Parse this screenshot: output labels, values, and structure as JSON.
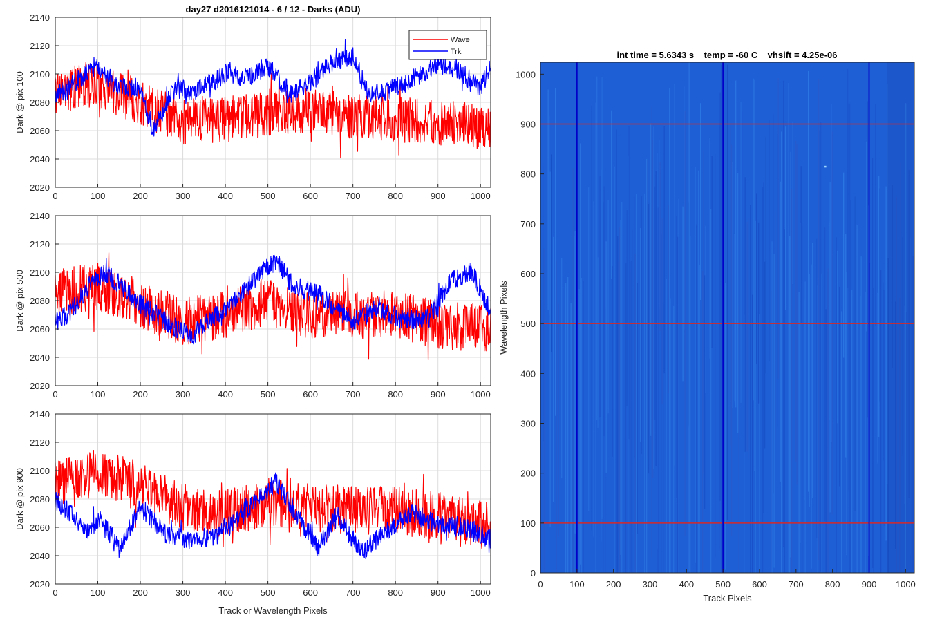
{
  "chart_data": [
    {
      "type": "line",
      "title": "day27 d2016121014 - 6 / 12 - Darks (ADU)",
      "xlabel": "",
      "ylabel": "Dark @ pix 100",
      "xlim": [
        0,
        1024
      ],
      "ylim": [
        2020,
        2140
      ],
      "xticks": [
        0,
        100,
        200,
        300,
        400,
        500,
        600,
        700,
        800,
        900,
        1000
      ],
      "yticks": [
        2020,
        2040,
        2060,
        2080,
        2100,
        2120,
        2140
      ],
      "grid": true,
      "legend": {
        "placement": "top-right",
        "entries": [
          "Wave",
          "Trk"
        ]
      },
      "series": [
        {
          "name": "Wave",
          "color": "#ff0000",
          "trend_x": [
            0,
            100,
            200,
            300,
            400,
            500,
            600,
            700,
            800,
            900,
            1024
          ],
          "trend_y": [
            2088,
            2092,
            2080,
            2066,
            2068,
            2072,
            2074,
            2070,
            2068,
            2066,
            2062
          ],
          "noise_amplitude": 16
        },
        {
          "name": "Trk",
          "color": "#0000ff",
          "trend_x": [
            0,
            50,
            100,
            150,
            200,
            230,
            280,
            330,
            400,
            450,
            500,
            560,
            600,
            650,
            700,
            740,
            800,
            850,
            900,
            950,
            1000,
            1024
          ],
          "trend_y": [
            2085,
            2095,
            2105,
            2090,
            2090,
            2060,
            2090,
            2088,
            2100,
            2098,
            2105,
            2085,
            2095,
            2108,
            2112,
            2085,
            2090,
            2098,
            2108,
            2102,
            2090,
            2105
          ],
          "noise_amplitude": 7
        }
      ]
    },
    {
      "type": "line",
      "title": "",
      "xlabel": "",
      "ylabel": "Dark @ pix 500",
      "xlim": [
        0,
        1024
      ],
      "ylim": [
        2020,
        2140
      ],
      "xticks": [
        0,
        100,
        200,
        300,
        400,
        500,
        600,
        700,
        800,
        900,
        1000
      ],
      "yticks": [
        2020,
        2040,
        2060,
        2080,
        2100,
        2120,
        2140
      ],
      "grid": true,
      "series": [
        {
          "name": "Wave",
          "color": "#ff0000",
          "trend_x": [
            0,
            100,
            200,
            300,
            400,
            500,
            600,
            700,
            800,
            900,
            1024
          ],
          "trend_y": [
            2085,
            2090,
            2078,
            2065,
            2070,
            2080,
            2068,
            2070,
            2070,
            2063,
            2060
          ],
          "noise_amplitude": 17
        },
        {
          "name": "Trk",
          "color": "#0000ff",
          "trend_x": [
            0,
            30,
            80,
            120,
            200,
            260,
            320,
            360,
            420,
            480,
            520,
            560,
            620,
            700,
            760,
            820,
            880,
            930,
            980,
            1024
          ],
          "trend_y": [
            2065,
            2070,
            2090,
            2100,
            2078,
            2065,
            2055,
            2065,
            2080,
            2098,
            2108,
            2090,
            2085,
            2065,
            2075,
            2066,
            2068,
            2095,
            2100,
            2072
          ],
          "noise_amplitude": 7
        }
      ]
    },
    {
      "type": "line",
      "title": "",
      "xlabel": "Track or Wavelength Pixels",
      "ylabel": "Dark @ pix 900",
      "xlim": [
        0,
        1024
      ],
      "ylim": [
        2020,
        2140
      ],
      "xticks": [
        0,
        100,
        200,
        300,
        400,
        500,
        600,
        700,
        800,
        900,
        1000
      ],
      "yticks": [
        2020,
        2040,
        2060,
        2080,
        2100,
        2120,
        2140
      ],
      "grid": true,
      "series": [
        {
          "name": "Wave",
          "color": "#ff0000",
          "trend_x": [
            0,
            100,
            200,
            300,
            400,
            500,
            600,
            700,
            800,
            900,
            1024
          ],
          "trend_y": [
            2090,
            2098,
            2090,
            2074,
            2070,
            2078,
            2074,
            2072,
            2072,
            2068,
            2060
          ],
          "noise_amplitude": 17
        },
        {
          "name": "Trk",
          "color": "#0000ff",
          "trend_x": [
            0,
            40,
            80,
            110,
            150,
            200,
            260,
            320,
            380,
            420,
            470,
            520,
            570,
            620,
            660,
            720,
            780,
            840,
            900,
            960,
            1024
          ],
          "trend_y": [
            2080,
            2068,
            2058,
            2065,
            2045,
            2075,
            2055,
            2050,
            2055,
            2065,
            2078,
            2092,
            2068,
            2045,
            2070,
            2042,
            2058,
            2070,
            2062,
            2060,
            2052
          ],
          "noise_amplitude": 7
        }
      ]
    },
    {
      "type": "heatmap",
      "title": "int time = 5.6343 s    temp = -60 C    vhsift = 4.25e-06",
      "xlabel": "Track Pixels",
      "ylabel": "Wavelength Pixels",
      "xlim": [
        0,
        1024
      ],
      "ylim": [
        0,
        1024
      ],
      "xticks": [
        0,
        100,
        200,
        300,
        400,
        500,
        600,
        700,
        800,
        900,
        1000
      ],
      "yticks": [
        0,
        100,
        200,
        300,
        400,
        500,
        600,
        700,
        800,
        900,
        1000
      ],
      "base_color": "#1f5fd6",
      "hot_pixel": {
        "x": 780,
        "y": 815,
        "color": "#9fd8ff"
      },
      "vertical_markers": {
        "values": [
          100,
          500,
          900
        ],
        "color": "#0000c8"
      },
      "horizontal_markers": {
        "values": [
          100,
          500,
          900
        ],
        "color": "#d62828"
      }
    }
  ]
}
